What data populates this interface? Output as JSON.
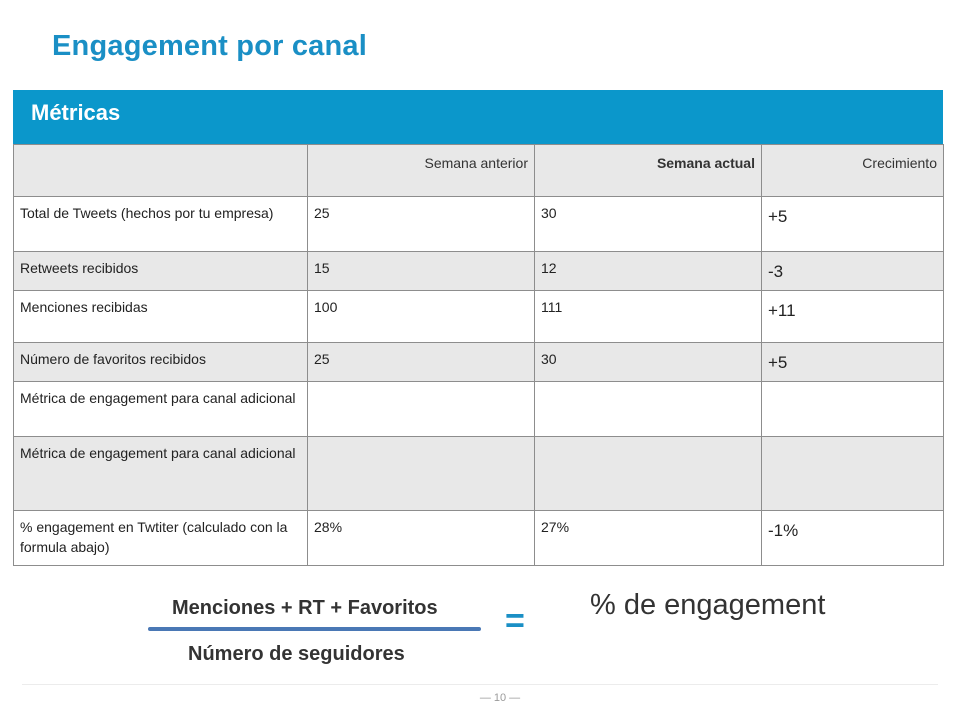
{
  "title": "Engagement por canal",
  "table": {
    "section_title": "Métricas",
    "headers": [
      "",
      "Semana anterior",
      "Semana actual",
      "Crecimiento"
    ],
    "rows": [
      {
        "metric": "Total de Tweets (hechos por tu empresa)",
        "previous": "25",
        "current": "30",
        "growth": "+5"
      },
      {
        "metric": "Retweets recibidos",
        "previous": "15",
        "current": "12",
        "growth": "-3"
      },
      {
        "metric": "Menciones recibidas",
        "previous": "100",
        "current": "111",
        "growth": "+11"
      },
      {
        "metric": "Número de favoritos recibidos",
        "previous": "25",
        "current": "30",
        "growth": "+5"
      },
      {
        "metric": "Métrica de engagement para canal adicional",
        "previous": "",
        "current": "",
        "growth": ""
      },
      {
        "metric": "Métrica de engagement para canal adicional",
        "previous": "",
        "current": "",
        "growth": ""
      },
      {
        "metric": "% engagement en Twtiter (calculado con la formula abajo)",
        "previous": "28%",
        "current": "27%",
        "growth": "-1%"
      }
    ]
  },
  "formula": {
    "numerator": "Menciones + RT + Favoritos",
    "denominator": "Número de seguidores",
    "equals": "=",
    "result": "% de engagement"
  },
  "footer": {
    "page_number": "— 10 —"
  },
  "colors": {
    "accent": "#1a8fc5",
    "header_bar": "#0b97cb",
    "fraction_line": "#4a78b5",
    "row_shade": "#e8e8e8"
  }
}
